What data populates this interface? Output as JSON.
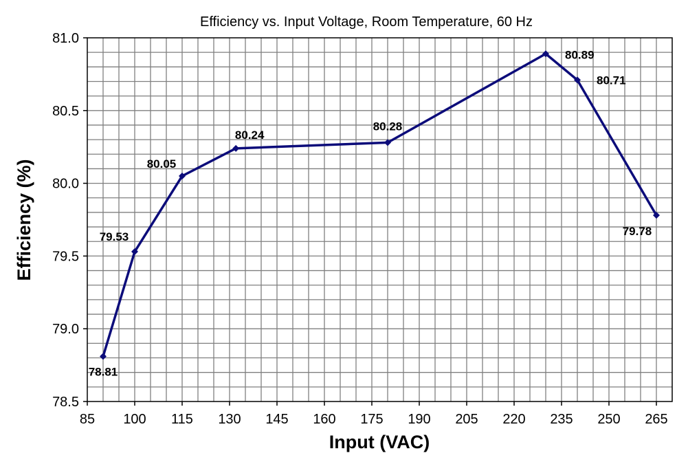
{
  "chart_data": {
    "type": "line",
    "title": "Efficiency vs. Input Voltage, Room Temperature, 60 Hz",
    "xlabel": "Input (VAC)",
    "ylabel": "Efficiency (%)",
    "xlim": [
      85,
      270
    ],
    "ylim": [
      78.5,
      81.0
    ],
    "x_ticks": [
      85,
      100,
      115,
      130,
      145,
      160,
      175,
      190,
      205,
      220,
      235,
      250,
      265
    ],
    "y_ticks": [
      "78.5",
      "79.0",
      "79.5",
      "80.0",
      "80.5",
      "81.0"
    ],
    "x_minor_step": 5,
    "y_minor_step": 0.1,
    "grid": true,
    "series": [
      {
        "name": "Efficiency",
        "color": "#0c0c7a",
        "points": [
          {
            "x": 90,
            "y": 78.81,
            "label": "78.81",
            "label_pos": "below"
          },
          {
            "x": 100,
            "y": 79.53,
            "label": "79.53",
            "label_pos": "above-left"
          },
          {
            "x": 115,
            "y": 80.05,
            "label": "80.05",
            "label_pos": "left"
          },
          {
            "x": 132,
            "y": 80.24,
            "label": "80.24",
            "label_pos": "above-right"
          },
          {
            "x": 180,
            "y": 80.28,
            "label": "80.28",
            "label_pos": "above"
          },
          {
            "x": 230,
            "y": 80.89,
            "label": "80.89",
            "label_pos": "right"
          },
          {
            "x": 240,
            "y": 80.71,
            "label": "80.71",
            "label_pos": "right"
          },
          {
            "x": 265,
            "y": 79.78,
            "label": "79.78",
            "label_pos": "below-left"
          }
        ]
      }
    ]
  }
}
